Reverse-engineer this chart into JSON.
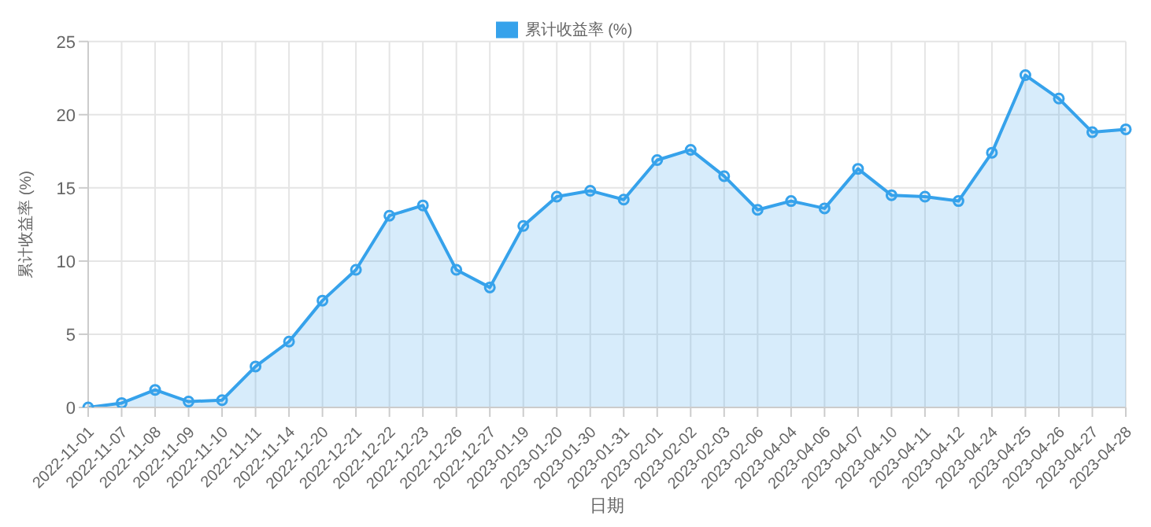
{
  "chart_data": {
    "type": "area",
    "xlabel": "日期",
    "ylabel": "累计收益率 (%)",
    "categories": [
      "2022-11-01",
      "2022-11-07",
      "2022-11-08",
      "2022-11-09",
      "2022-11-10",
      "2022-11-11",
      "2022-11-14",
      "2022-12-20",
      "2022-12-21",
      "2022-12-22",
      "2022-12-23",
      "2022-12-26",
      "2022-12-27",
      "2023-01-19",
      "2023-01-20",
      "2023-01-30",
      "2023-01-31",
      "2023-02-01",
      "2023-02-02",
      "2023-02-03",
      "2023-02-06",
      "2023-04-04",
      "2023-04-06",
      "2023-04-07",
      "2023-04-10",
      "2023-04-11",
      "2023-04-12",
      "2023-04-24",
      "2023-04-25",
      "2023-04-26",
      "2023-04-27",
      "2023-04-28"
    ],
    "series": [
      {
        "name": "累计收益率 (%)",
        "color": "#36a2eb",
        "values": [
          0,
          0.3,
          1.2,
          0.4,
          0.5,
          2.8,
          4.5,
          7.3,
          9.4,
          13.1,
          13.8,
          9.4,
          8.2,
          12.4,
          14.4,
          14.8,
          14.2,
          16.9,
          17.6,
          15.8,
          13.5,
          14.1,
          13.6,
          16.3,
          14.5,
          14.4,
          14.1,
          17.4,
          22.7,
          21.1,
          18.8,
          19.0
        ]
      }
    ],
    "ylim": [
      0,
      25
    ],
    "yticks": [
      0,
      5,
      10,
      15,
      20,
      25
    ],
    "grid": true,
    "legend": "top",
    "marker": "circle",
    "line_style": "solid"
  }
}
